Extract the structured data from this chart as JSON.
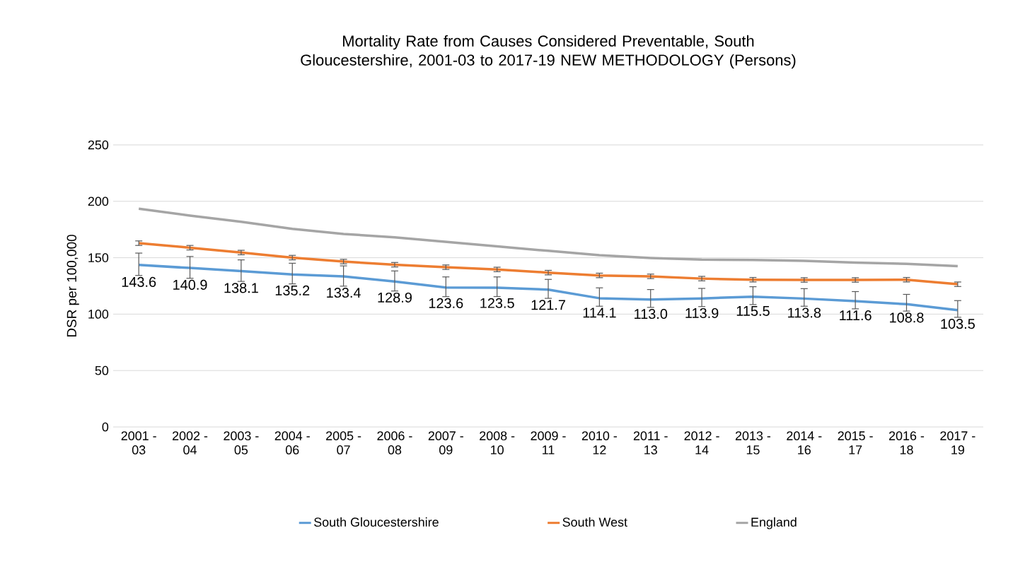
{
  "chart_data": {
    "type": "line",
    "title": "Mortality Rate from Causes Considered Preventable, South Gloucestershire, 2001-03 to 2017-19 NEW METHODOLOGY (Persons)",
    "ylabel": "DSR per 100,000",
    "categories": [
      "2001 - 03",
      "2002 - 04",
      "2003 - 05",
      "2004 - 06",
      "2005 - 07",
      "2006 - 08",
      "2007 - 09",
      "2008 - 10",
      "2009 - 11",
      "2010 - 12",
      "2011 - 13",
      "2012 - 14",
      "2013 - 15",
      "2014 - 16",
      "2015 - 17",
      "2016 - 18",
      "2017 - 19"
    ],
    "series": [
      {
        "name": "South Gloucestershire",
        "color": "#5b9bd5",
        "values": [
          143.6,
          140.9,
          138.1,
          135.2,
          133.4,
          128.9,
          123.6,
          123.5,
          121.7,
          114.1,
          113.0,
          113.9,
          115.5,
          113.8,
          111.6,
          108.8,
          103.5
        ],
        "errors": [
          [
            134.3,
            154.1
          ],
          [
            131.8,
            151.1
          ],
          [
            129.0,
            148.1
          ],
          [
            126.8,
            145.1
          ],
          [
            124.8,
            142.8
          ],
          [
            120.5,
            138.3
          ],
          [
            115.5,
            133.0
          ],
          [
            115.6,
            133.0
          ],
          [
            114.0,
            130.8
          ],
          [
            107.0,
            123.3
          ],
          [
            106.0,
            121.8
          ],
          [
            106.7,
            122.8
          ],
          [
            108.5,
            124.3
          ],
          [
            107.0,
            122.6
          ],
          [
            104.7,
            120.0
          ],
          [
            102.7,
            117.5
          ],
          [
            97.2,
            112.0
          ]
        ],
        "value_labels": [
          "143.6",
          "140.9",
          "138.1",
          "135.2",
          "133.4",
          "128.9",
          "123.6",
          "123.5",
          "121.7",
          "114.1",
          "113.0",
          "113.9",
          "115.5",
          "113.8",
          "111.6",
          "108.8",
          "103.5"
        ]
      },
      {
        "name": "South West",
        "color": "#ed7d31",
        "values": [
          162.9,
          158.9,
          154.6,
          150.1,
          146.6,
          143.8,
          141.6,
          139.6,
          136.8,
          134.3,
          133.5,
          131.5,
          130.5,
          130.3,
          130.3,
          130.5,
          126.5
        ],
        "errors": [
          2,
          2,
          2,
          2,
          2,
          2,
          2,
          2,
          2,
          2,
          2,
          2,
          2,
          2,
          2,
          2,
          2
        ]
      },
      {
        "name": "England",
        "color": "#a5a5a5",
        "values": [
          193.4,
          187.4,
          181.9,
          175.6,
          171.1,
          168.1,
          164.1,
          160.1,
          156.1,
          152.3,
          149.8,
          148.3,
          148.0,
          147.3,
          145.6,
          144.6,
          142.6
        ]
      }
    ],
    "ylim": [
      0,
      250
    ],
    "yticks": [
      0,
      50,
      100,
      150,
      200,
      250
    ],
    "grid": "y",
    "legend": "bottom",
    "marker": "none",
    "line_style": "solid"
  }
}
